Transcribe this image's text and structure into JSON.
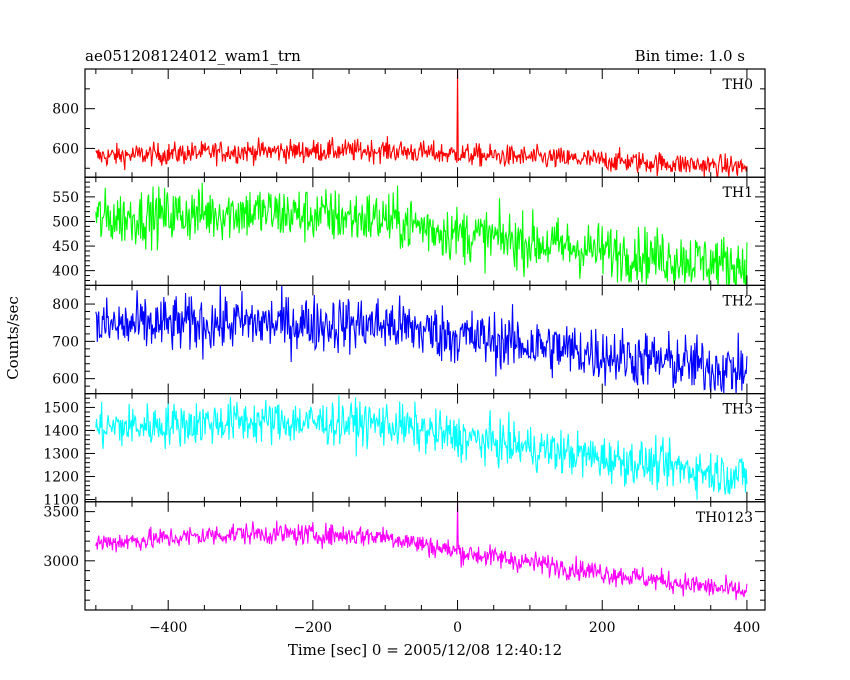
{
  "chart_data": {
    "type": "line",
    "title": "ae051208124012_wam1_trn",
    "bin_time_label": "Bin time: 1.0 s",
    "xlabel": "Time [sec] 0 = 2005/12/08 12:40:12",
    "ylabel": "Counts/sec",
    "xlim": [
      -515,
      425
    ],
    "x_ticks": [
      -400,
      -200,
      0,
      200,
      400
    ],
    "x_minor_step": 50,
    "grid": false,
    "series_step": 1,
    "panels": [
      {
        "name": "TH0",
        "color": "#ff0000",
        "ylim": [
          455,
          1000
        ],
        "y_ticks": [
          600,
          800
        ],
        "y_minor_step": 100,
        "x_range": [
          -500,
          400
        ],
        "trend": [
          [
            -500,
            560
          ],
          [
            -300,
            585
          ],
          [
            -100,
            590
          ],
          [
            0,
            570
          ],
          [
            200,
            540
          ],
          [
            400,
            505
          ]
        ],
        "noise": 28,
        "spikes": [
          {
            "x": 0,
            "y": 1000
          }
        ]
      },
      {
        "name": "TH1",
        "color": "#00ff00",
        "ylim": [
          370,
          590
        ],
        "y_ticks": [
          400,
          450,
          500,
          550
        ],
        "y_minor_step": 10,
        "x_range": [
          -500,
          400
        ],
        "trend": [
          [
            -500,
            505
          ],
          [
            -300,
            520
          ],
          [
            -100,
            505
          ],
          [
            0,
            475
          ],
          [
            200,
            440
          ],
          [
            400,
            410
          ]
        ],
        "noise": 28,
        "spikes": []
      },
      {
        "name": "TH2",
        "color": "#0000ff",
        "ylim": [
          560,
          850
        ],
        "y_ticks": [
          600,
          700,
          800
        ],
        "y_minor_step": 20,
        "x_range": [
          -500,
          400
        ],
        "trend": [
          [
            -500,
            740
          ],
          [
            -300,
            750
          ],
          [
            -100,
            745
          ],
          [
            0,
            715
          ],
          [
            200,
            665
          ],
          [
            400,
            620
          ]
        ],
        "noise": 38,
        "spikes": []
      },
      {
        "name": "TH3",
        "color": "#00ffff",
        "ylim": [
          1090,
          1560
        ],
        "y_ticks": [
          1100,
          1200,
          1300,
          1400,
          1500
        ],
        "y_minor_step": 20,
        "x_range": [
          -500,
          400
        ],
        "trend": [
          [
            -500,
            1410
          ],
          [
            -300,
            1440
          ],
          [
            -100,
            1430
          ],
          [
            0,
            1370
          ],
          [
            200,
            1280
          ],
          [
            400,
            1200
          ]
        ],
        "noise": 48,
        "spikes": []
      },
      {
        "name": "TH0123",
        "color": "#ff00ff",
        "ylim": [
          2500,
          3600
        ],
        "y_ticks": [
          3000,
          3500
        ],
        "y_minor_step": 100,
        "x_range": [
          -500,
          400
        ],
        "trend": [
          [
            -500,
            3180
          ],
          [
            -300,
            3280
          ],
          [
            -100,
            3250
          ],
          [
            0,
            3090
          ],
          [
            200,
            2880
          ],
          [
            400,
            2680
          ]
        ],
        "noise": 55,
        "spikes": [
          {
            "x": 0,
            "y": 3600
          }
        ]
      }
    ]
  }
}
